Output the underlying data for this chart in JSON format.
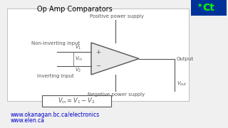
{
  "title": "Op Amp Comparators",
  "bg_color": "#f0f0f0",
  "diagram_bg": "#ffffff",
  "text_color": "#000000",
  "link_color": "#0000cc",
  "logo_bg": "#003399",
  "logo_text_color": "#00ff00",
  "url1": "www.okanagan.bc.ca/electronics",
  "url2": "www.elen.ca",
  "label_pos_supply": "Positive power supply",
  "label_neg_supply": "Negative power supply",
  "label_noninv": "Non-inverting input",
  "label_inv": "Inverting input",
  "label_output": "Output",
  "label_v1": "$V_1$",
  "label_v2": "$V_2$",
  "label_vin": "$V_{in}$",
  "label_vout": "$V_{out}$",
  "line_color": "#555555",
  "triangle_edge": "#555555"
}
